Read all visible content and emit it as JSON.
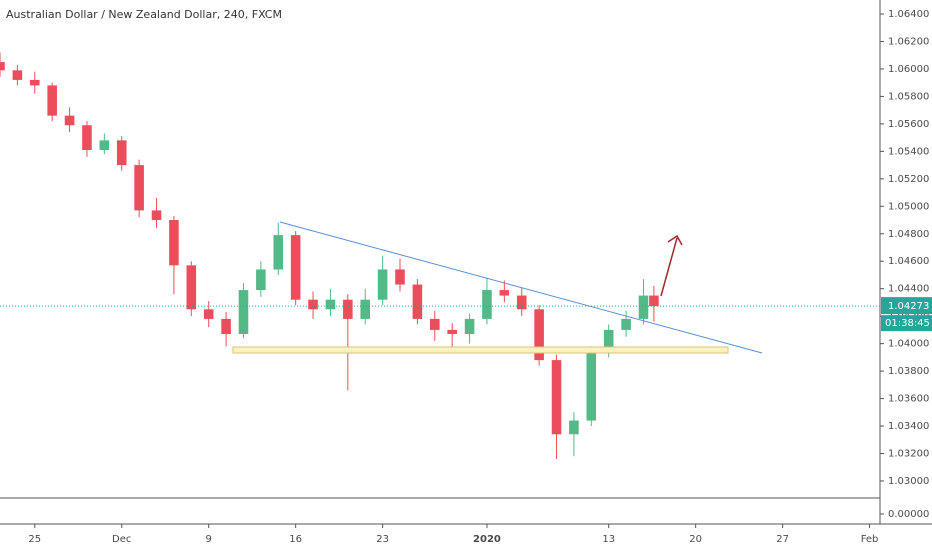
{
  "chart_data": {
    "type": "candlestick",
    "title": "Australian Dollar / New Zealand Dollar, 240, FXCM",
    "x": [
      -2,
      -1,
      0,
      1,
      2,
      3,
      4,
      5,
      6,
      7,
      8,
      9,
      10,
      11,
      12,
      13,
      14,
      15,
      16,
      17,
      18,
      19,
      20,
      21,
      22,
      23,
      24,
      25,
      26,
      27,
      28,
      29,
      30,
      31,
      32,
      33,
      34,
      35,
      35.6
    ],
    "open": [
      1.0605,
      1.0599,
      1.0592,
      1.0588,
      1.0566,
      1.0559,
      1.0541,
      1.0548,
      1.053,
      1.0497,
      1.049,
      1.0457,
      1.0425,
      1.0418,
      1.0407,
      1.0439,
      1.0454,
      1.0479,
      1.0432,
      1.0425,
      1.0432,
      1.0418,
      1.0432,
      1.0454,
      1.0443,
      1.0418,
      1.041,
      1.0407,
      1.0418,
      1.0439,
      1.0435,
      1.0425,
      1.0388,
      1.0334,
      1.0344,
      1.0395,
      1.041,
      1.0418,
      1.0435
    ],
    "high": [
      1.0612,
      1.0603,
      1.0598,
      1.059,
      1.0572,
      1.0562,
      1.0553,
      1.0551,
      1.0534,
      1.0506,
      1.0493,
      1.046,
      1.0431,
      1.0423,
      1.0444,
      1.046,
      1.0488,
      1.0482,
      1.0438,
      1.044,
      1.0436,
      1.044,
      1.0464,
      1.0462,
      1.0447,
      1.0424,
      1.0415,
      1.0422,
      1.0448,
      1.0446,
      1.0441,
      1.0428,
      1.0392,
      1.035,
      1.0398,
      1.0414,
      1.0424,
      1.0447,
      1.0442
    ],
    "low": [
      1.0594,
      1.0588,
      1.0582,
      1.0562,
      1.0554,
      1.0536,
      1.0538,
      1.0526,
      1.0492,
      1.0484,
      1.0436,
      1.042,
      1.0412,
      1.0398,
      1.0404,
      1.0434,
      1.045,
      1.0428,
      1.0418,
      1.042,
      1.0366,
      1.0414,
      1.0428,
      1.0438,
      1.0414,
      1.0402,
      1.0396,
      1.04,
      1.0414,
      1.043,
      1.042,
      1.0384,
      1.0316,
      1.0318,
      1.034,
      1.039,
      1.0405,
      1.0414,
      1.0416
    ],
    "close": [
      1.0599,
      1.0592,
      1.0588,
      1.0566,
      1.0559,
      1.0541,
      1.0548,
      1.053,
      1.0497,
      1.049,
      1.0457,
      1.0425,
      1.0418,
      1.0407,
      1.0439,
      1.0454,
      1.0479,
      1.0432,
      1.0425,
      1.0432,
      1.0418,
      1.0432,
      1.0454,
      1.0443,
      1.0418,
      1.041,
      1.0407,
      1.0418,
      1.0439,
      1.0435,
      1.0425,
      1.0388,
      1.0334,
      1.0344,
      1.0395,
      1.041,
      1.0418,
      1.0435,
      1.04273
    ],
    "up_color": "#53b987",
    "down_color": "#eb4d5c",
    "xlim": [
      -2,
      48.6
    ],
    "xticks": [
      {
        "value": 0,
        "label": "25"
      },
      {
        "value": 5,
        "label": "Dec"
      },
      {
        "value": 10,
        "label": "9"
      },
      {
        "value": 15,
        "label": "16"
      },
      {
        "value": 20,
        "label": "23"
      },
      {
        "value": 26,
        "label": "2020"
      },
      {
        "value": 33,
        "label": "13"
      },
      {
        "value": 38,
        "label": "20"
      },
      {
        "value": 43,
        "label": "27"
      },
      {
        "value": 48,
        "label": "Feb"
      }
    ],
    "ylim": [
      1.02876,
      1.06502
    ],
    "yticks": [
      {
        "value": 1.03,
        "label": "1.03000"
      },
      {
        "value": 1.032,
        "label": "1.03200"
      },
      {
        "value": 1.034,
        "label": "1.03400"
      },
      {
        "value": 1.036,
        "label": "1.03600"
      },
      {
        "value": 1.038,
        "label": "1.03800"
      },
      {
        "value": 1.04,
        "label": "1.04000"
      },
      {
        "value": 1.042,
        "label": "1.04200"
      },
      {
        "value": 1.044,
        "label": "1.04400"
      },
      {
        "value": 1.046,
        "label": "1.04600"
      },
      {
        "value": 1.048,
        "label": "1.04800"
      },
      {
        "value": 1.05,
        "label": "1.05000"
      },
      {
        "value": 1.052,
        "label": "1.05200"
      },
      {
        "value": 1.054,
        "label": "1.05400"
      },
      {
        "value": 1.056,
        "label": "1.05600"
      },
      {
        "value": 1.058,
        "label": "1.05800"
      },
      {
        "value": 1.06,
        "label": "1.06000"
      },
      {
        "value": 1.062,
        "label": "1.06200"
      },
      {
        "value": 1.064,
        "label": "1.06400"
      }
    ],
    "pane2_yticks": [
      {
        "value": 0,
        "label": "0.00000"
      }
    ],
    "last_price": {
      "value": 1.04273,
      "label": "1.04273"
    },
    "countdown": "01:38:45"
  }
}
